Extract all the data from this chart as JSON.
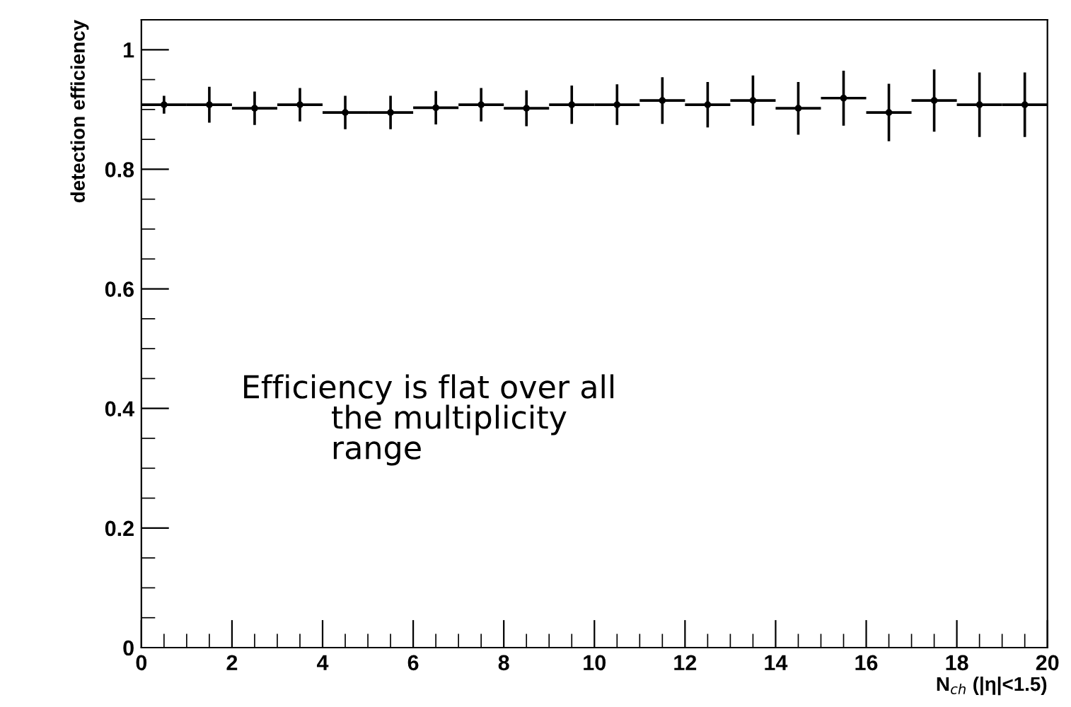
{
  "chart_data": {
    "type": "scatter",
    "xlabel": "N$_{ch}$ (|η|<1.5)",
    "ylabel": "detection efficiency",
    "x": [
      0.5,
      1.5,
      2.5,
      3.5,
      4.5,
      5.5,
      6.5,
      7.5,
      8.5,
      9.5,
      10.5,
      11.5,
      12.5,
      13.5,
      14.5,
      15.5,
      16.5,
      17.5,
      18.5,
      19.5
    ],
    "values": [
      0.908,
      0.908,
      0.902,
      0.908,
      0.895,
      0.895,
      0.903,
      0.908,
      0.902,
      0.908,
      0.908,
      0.915,
      0.908,
      0.915,
      0.902,
      0.919,
      0.895,
      0.915,
      0.908,
      0.908
    ],
    "errors": [
      0.015,
      0.03,
      0.028,
      0.028,
      0.028,
      0.028,
      0.028,
      0.028,
      0.03,
      0.032,
      0.034,
      0.039,
      0.038,
      0.042,
      0.044,
      0.046,
      0.048,
      0.052,
      0.054,
      0.054
    ],
    "xerrors": [
      0.5,
      0.5,
      0.5,
      0.5,
      0.5,
      0.5,
      0.5,
      0.5,
      0.5,
      0.5,
      0.5,
      0.5,
      0.5,
      0.5,
      0.5,
      0.5,
      0.5,
      0.5,
      0.5,
      0.5
    ],
    "color": "#000000",
    "xlim": [
      0,
      20
    ],
    "ylim": [
      0,
      1.05
    ],
    "xticks": [
      0,
      2,
      4,
      6,
      8,
      10,
      12,
      14,
      16,
      18,
      20
    ],
    "yticks": [
      0,
      0.2,
      0.4,
      0.6,
      0.8,
      1
    ],
    "grid": false,
    "legend": false,
    "annotations": [
      "Efficiency is flat over all\n         the multiplicity\n         range"
    ]
  }
}
